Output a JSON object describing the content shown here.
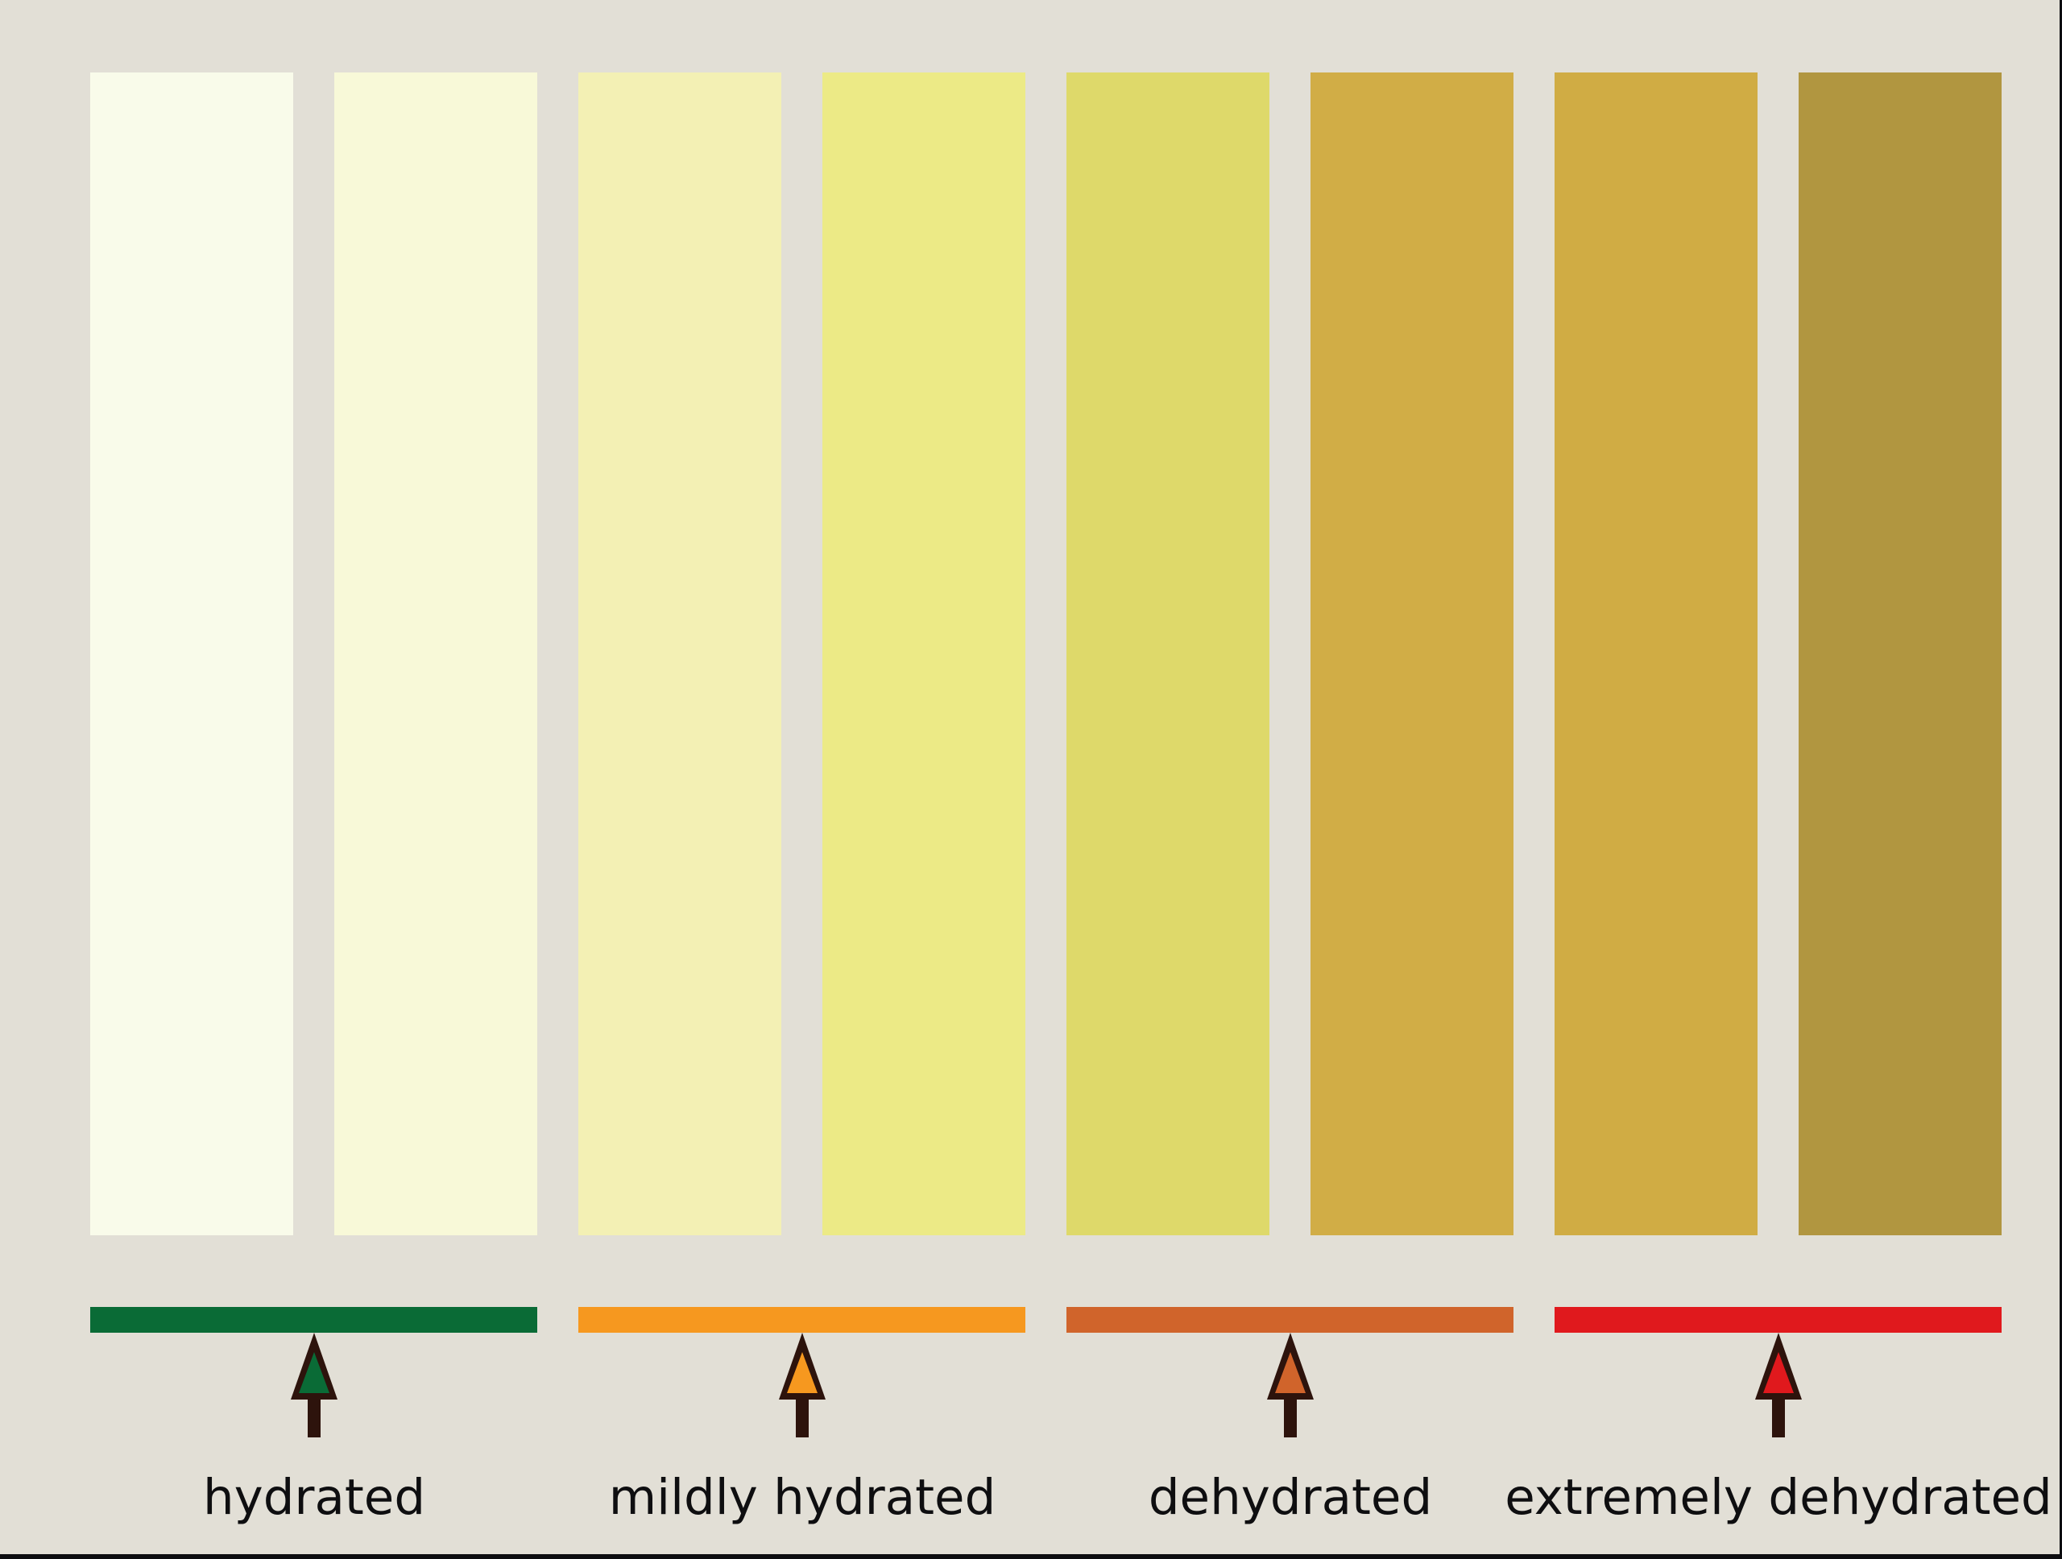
{
  "colors": {
    "background": "#e2dfd6",
    "arrow_outline": "#2d130c",
    "label_text": "#0e0e10",
    "edge_border": "#0d0d10"
  },
  "swatches": [
    {
      "name": "urine-shade-1",
      "color": "#f9fbea"
    },
    {
      "name": "urine-shade-2",
      "color": "#f8f9d8"
    },
    {
      "name": "urine-shade-3",
      "color": "#f3f0b4"
    },
    {
      "name": "urine-shade-4",
      "color": "#ecea86"
    },
    {
      "name": "urine-shade-5",
      "color": "#ded96a"
    },
    {
      "name": "urine-shade-6",
      "color": "#d1ad46"
    },
    {
      "name": "urine-shade-7",
      "color": "#d0ac44"
    },
    {
      "name": "urine-shade-8",
      "color": "#b19640"
    }
  ],
  "hydration_levels": [
    {
      "label": "hydrated",
      "color": "#0a6b36",
      "swatch_range": [
        1,
        2
      ]
    },
    {
      "label": "mildly hydrated",
      "color": "#f6981f",
      "swatch_range": [
        3,
        4
      ]
    },
    {
      "label": "dehydrated",
      "color": "#d0642b",
      "swatch_range": [
        5,
        6
      ]
    },
    {
      "label": "extremely dehydrated",
      "color": "#e0191d",
      "swatch_range": [
        7,
        8
      ]
    }
  ]
}
